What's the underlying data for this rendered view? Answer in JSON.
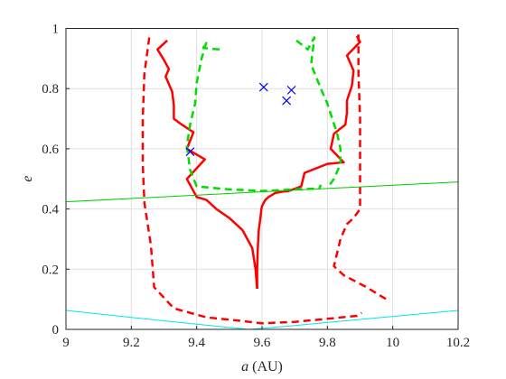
{
  "chart_data": {
    "type": "line",
    "title": "",
    "xlabel_var": "a",
    "xlabel_unit": "(AU)",
    "ylabel": "e",
    "xlim": [
      9.0,
      10.2
    ],
    "ylim": [
      0,
      1
    ],
    "grid": true,
    "xticks": [
      "9",
      "9.2",
      "9.4",
      "9.6",
      "9.8",
      "10",
      "10.2"
    ],
    "yticks": [
      "0",
      "0.2",
      "0.4",
      "0.6",
      "0.8",
      "1"
    ],
    "series": [
      {
        "style": "solid",
        "color": "#ff0000",
        "x": [
          9.585,
          9.585,
          9.587,
          9.59,
          9.595,
          9.598,
          9.6,
          9.61,
          9.62,
          9.64,
          9.665,
          9.683
        ],
        "y": [
          0.135,
          0.2,
          0.27,
          0.33,
          0.37,
          0.4,
          0.41,
          0.43,
          0.44,
          0.453,
          0.458,
          0.46
        ]
      },
      {
        "style": "solid",
        "color": "#ff0000",
        "x": [
          9.585,
          9.58,
          9.57,
          9.54,
          9.5,
          9.46,
          9.43,
          9.4,
          9.37,
          9.425,
          9.37,
          9.39,
          9.355,
          9.33,
          9.33,
          9.325,
          9.305,
          9.315,
          9.3,
          9.28,
          9.31
        ],
        "y": [
          0.135,
          0.2,
          0.27,
          0.33,
          0.37,
          0.4,
          0.43,
          0.44,
          0.5,
          0.565,
          0.6,
          0.655,
          0.68,
          0.7,
          0.745,
          0.79,
          0.84,
          0.865,
          0.895,
          0.93,
          0.96
        ]
      },
      {
        "style": "solid",
        "color": "#ff0000",
        "x": [
          9.683,
          9.72,
          9.73,
          9.8,
          9.85,
          9.81,
          9.82,
          9.855,
          9.86,
          9.86,
          9.875,
          9.88,
          9.86,
          9.9,
          9.89
        ],
        "y": [
          0.46,
          0.475,
          0.52,
          0.55,
          0.555,
          0.6,
          0.65,
          0.68,
          0.72,
          0.76,
          0.81,
          0.86,
          0.91,
          0.955,
          0.975
        ]
      },
      {
        "style": "dashed",
        "color": "#ff0000",
        "x": [
          9.255,
          9.24,
          9.235,
          9.235,
          9.24,
          9.26,
          9.27,
          9.33,
          9.43,
          9.52,
          9.6,
          9.7,
          9.8,
          9.89,
          9.905
        ],
        "y": [
          0.97,
          0.85,
          0.7,
          0.55,
          0.42,
          0.28,
          0.14,
          0.07,
          0.04,
          0.03,
          0.02,
          0.025,
          0.035,
          0.045,
          0.055
        ]
      },
      {
        "style": "dashed",
        "color": "#ff0000",
        "x": [
          9.895,
          9.895,
          9.9,
          9.9,
          9.9,
          9.88,
          9.86,
          9.84,
          9.82,
          9.85,
          9.92,
          9.98
        ],
        "y": [
          0.98,
          0.85,
          0.7,
          0.55,
          0.4,
          0.37,
          0.35,
          0.3,
          0.21,
          0.18,
          0.14,
          0.1
        ]
      },
      {
        "style": "dashed",
        "color": "#00dd00",
        "x": [
          9.47,
          9.42,
          9.43,
          9.415,
          9.4,
          9.395,
          9.38,
          9.37,
          9.38,
          9.4,
          9.5,
          9.6,
          9.7,
          9.775,
          9.78
        ],
        "y": [
          0.93,
          0.935,
          0.955,
          0.9,
          0.82,
          0.75,
          0.68,
          0.61,
          0.53,
          0.475,
          0.465,
          0.46,
          0.465,
          0.468,
          0.48
        ]
      },
      {
        "style": "dashed",
        "color": "#00dd00",
        "x": [
          9.705,
          9.74,
          9.76,
          9.75,
          9.78,
          9.8,
          9.815,
          9.83,
          9.84,
          9.84,
          9.82,
          9.8
        ],
        "y": [
          0.96,
          0.93,
          0.97,
          0.88,
          0.8,
          0.75,
          0.7,
          0.65,
          0.6,
          0.55,
          0.5,
          0.47
        ]
      },
      {
        "style": "solid",
        "color": "#00cc00",
        "width": 1,
        "x": [
          9.0,
          10.2
        ],
        "y": [
          0.424,
          0.49
        ]
      },
      {
        "style": "solid",
        "color": "#00e6e6",
        "width": 1,
        "x": [
          9.0,
          9.2,
          9.4,
          9.56,
          9.7,
          9.9,
          10.2
        ],
        "y": [
          0.063,
          0.04,
          0.017,
          0.0,
          0.013,
          0.033,
          0.063
        ]
      }
    ],
    "markers": {
      "symbol": "x",
      "color": "#0000ff",
      "x": [
        9.38,
        9.605,
        9.69,
        9.675
      ],
      "y": [
        0.59,
        0.805,
        0.795,
        0.76
      ]
    }
  }
}
